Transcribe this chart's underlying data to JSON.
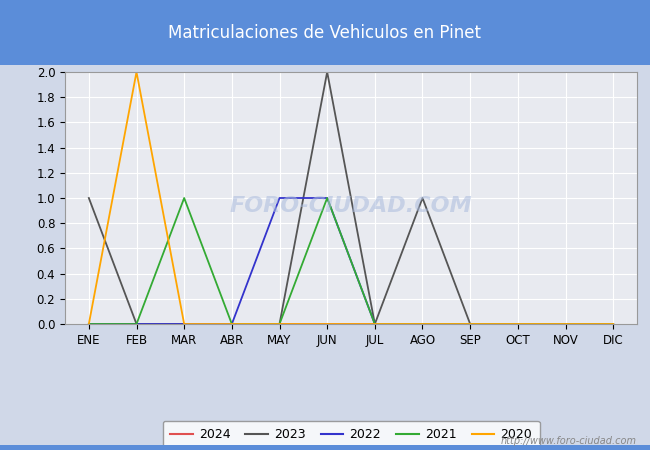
{
  "title": "Matriculaciones de Vehiculos en Pinet",
  "title_bg_color": "#5b8dd9",
  "title_text_color": "white",
  "months": [
    "ENE",
    "FEB",
    "MAR",
    "ABR",
    "MAY",
    "JUN",
    "JUL",
    "AGO",
    "SEP",
    "OCT",
    "NOV",
    "DIC"
  ],
  "ylim": [
    0.0,
    2.0
  ],
  "yticks": [
    0.0,
    0.2,
    0.4,
    0.6,
    0.8,
    1.0,
    1.2,
    1.4,
    1.6,
    1.8,
    2.0
  ],
  "series": {
    "2024": {
      "color": "#e05050",
      "values": [
        0,
        0,
        0,
        0,
        0,
        0,
        0,
        0,
        0,
        0,
        0,
        0
      ]
    },
    "2023": {
      "color": "#555555",
      "values": [
        1,
        0,
        0,
        0,
        0,
        2,
        0,
        1,
        0,
        0,
        0,
        0
      ]
    },
    "2022": {
      "color": "#3333cc",
      "values": [
        0,
        0,
        0,
        0,
        1,
        1,
        0,
        0,
        0,
        0,
        0,
        0
      ]
    },
    "2021": {
      "color": "#33aa33",
      "values": [
        0,
        0,
        1,
        0,
        0,
        1,
        0,
        0,
        0,
        0,
        0,
        0
      ]
    },
    "2020": {
      "color": "#ffa500",
      "values": [
        0,
        2,
        0,
        0,
        0,
        0,
        0,
        0,
        0,
        0,
        0,
        0
      ]
    }
  },
  "legend_order": [
    "2024",
    "2023",
    "2022",
    "2021",
    "2020"
  ],
  "watermark_plot": "FORO-CIUDAD.COM",
  "watermark_url": "http://www.foro-ciudad.com",
  "bg_color": "#d0d8e8",
  "plot_bg_color": "#e8eaf0",
  "grid_color": "white",
  "bottom_bg_color": "#d0d8e8"
}
